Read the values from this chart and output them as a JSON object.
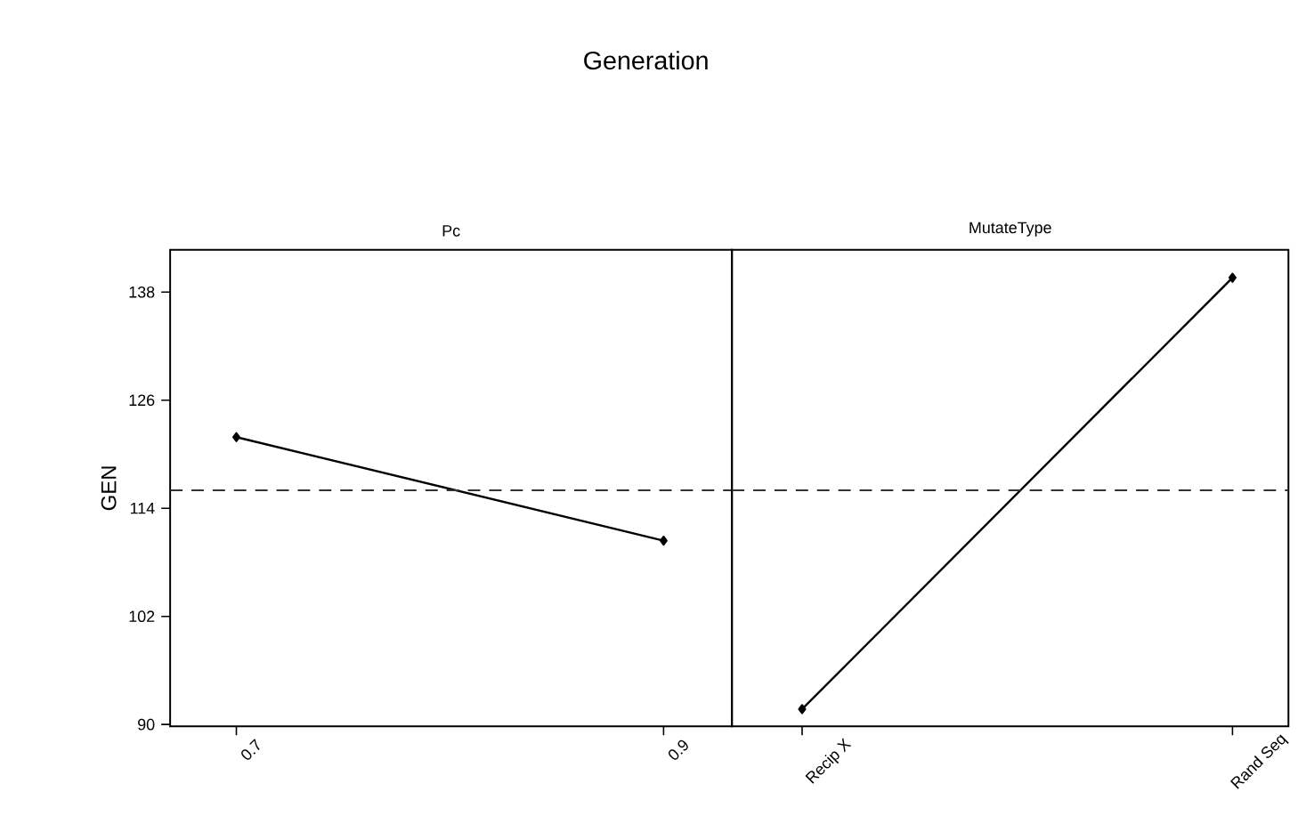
{
  "chart_data": [
    {
      "type": "line",
      "title": "Pc",
      "annotations": [
        "Generation"
      ],
      "ylabel": "GEN",
      "x": [
        0.7,
        0.9
      ],
      "xlim": [
        0.669,
        0.932
      ],
      "xticks": [
        0.7,
        0.9
      ],
      "series": [
        {
          "color": "#000000",
          "values": [
            121.9,
            110.4
          ]
        }
      ],
      "ylim": [
        89.8,
        142.7
      ],
      "yticks": [
        90,
        102,
        114,
        126,
        138
      ],
      "marker": "diamond",
      "line_style": "solid",
      "grid": false,
      "ref_lines": [
        {
          "axis": "y",
          "value": 116,
          "color": "#333333",
          "line_style": "dashed"
        }
      ]
    },
    {
      "type": "line",
      "title": "MutateType",
      "categories": [
        "Recip X",
        "Rand Seq"
      ],
      "series": [
        {
          "color": "#000000",
          "values": [
            91.7,
            139.6
          ]
        }
      ],
      "ylim": [
        89.8,
        142.7
      ],
      "yticks": [
        90,
        102,
        114,
        126,
        138
      ],
      "tick_labels": "x",
      "marker": "diamond",
      "line_style": "solid",
      "grid": false,
      "ref_lines": [
        {
          "axis": "y",
          "value": 116,
          "color": "#333333",
          "line_style": "dashed"
        }
      ]
    }
  ]
}
